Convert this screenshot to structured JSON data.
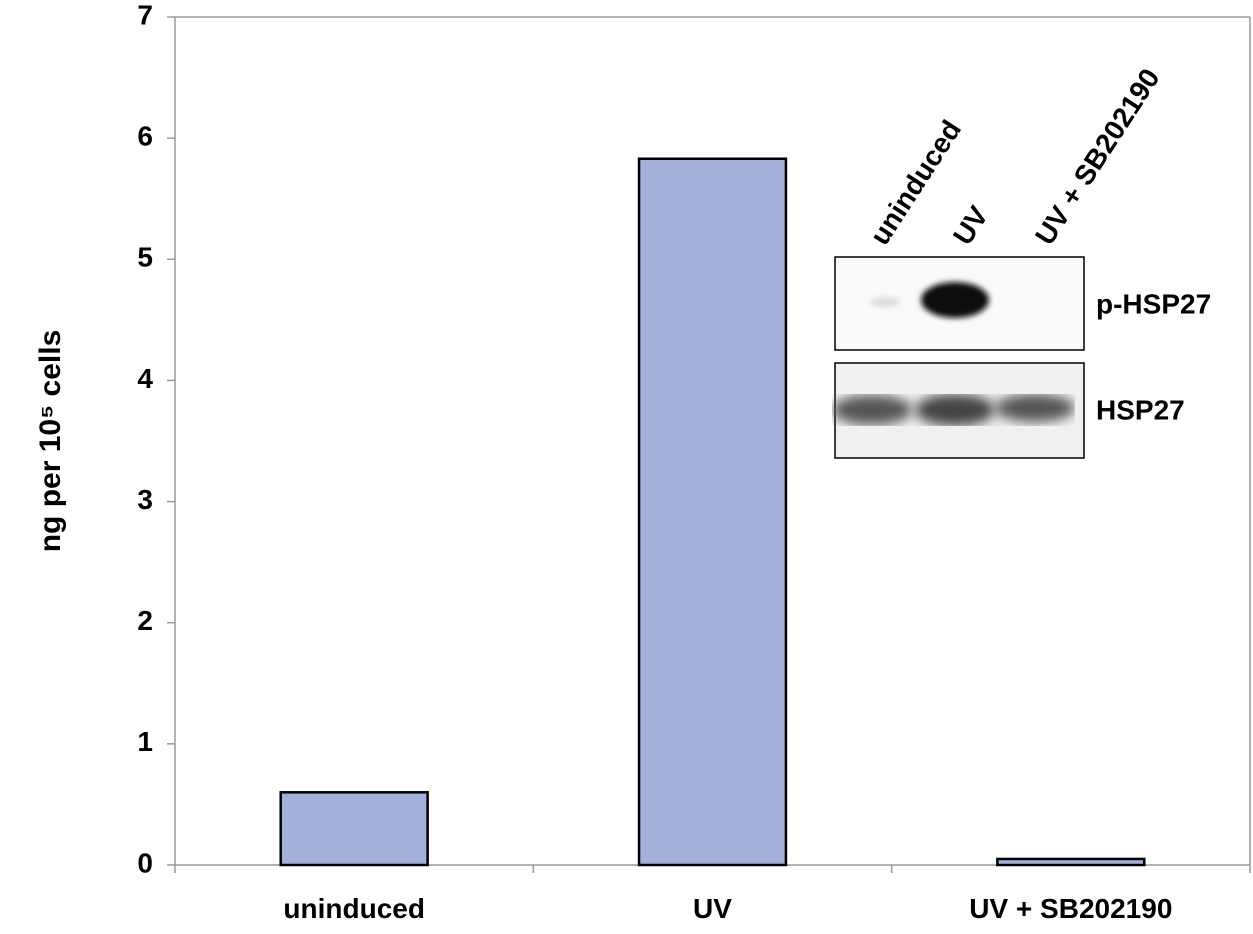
{
  "chart_data": {
    "type": "bar",
    "y_label": "ng per 10⁵ cells",
    "categories": [
      "uninduced",
      "UV",
      "UV + SB202190"
    ],
    "values": [
      0.6,
      5.83,
      0.05
    ],
    "color": "#a3b0da",
    "ylim": [
      0,
      7
    ],
    "yticks": [
      0,
      1,
      2,
      3,
      4,
      5,
      6,
      7
    ],
    "grid": false,
    "inset": {
      "lanes": [
        "uninduced",
        "UV",
        "UV + SB202190"
      ],
      "bands": [
        "p-HSP27",
        "HSP27"
      ]
    }
  }
}
